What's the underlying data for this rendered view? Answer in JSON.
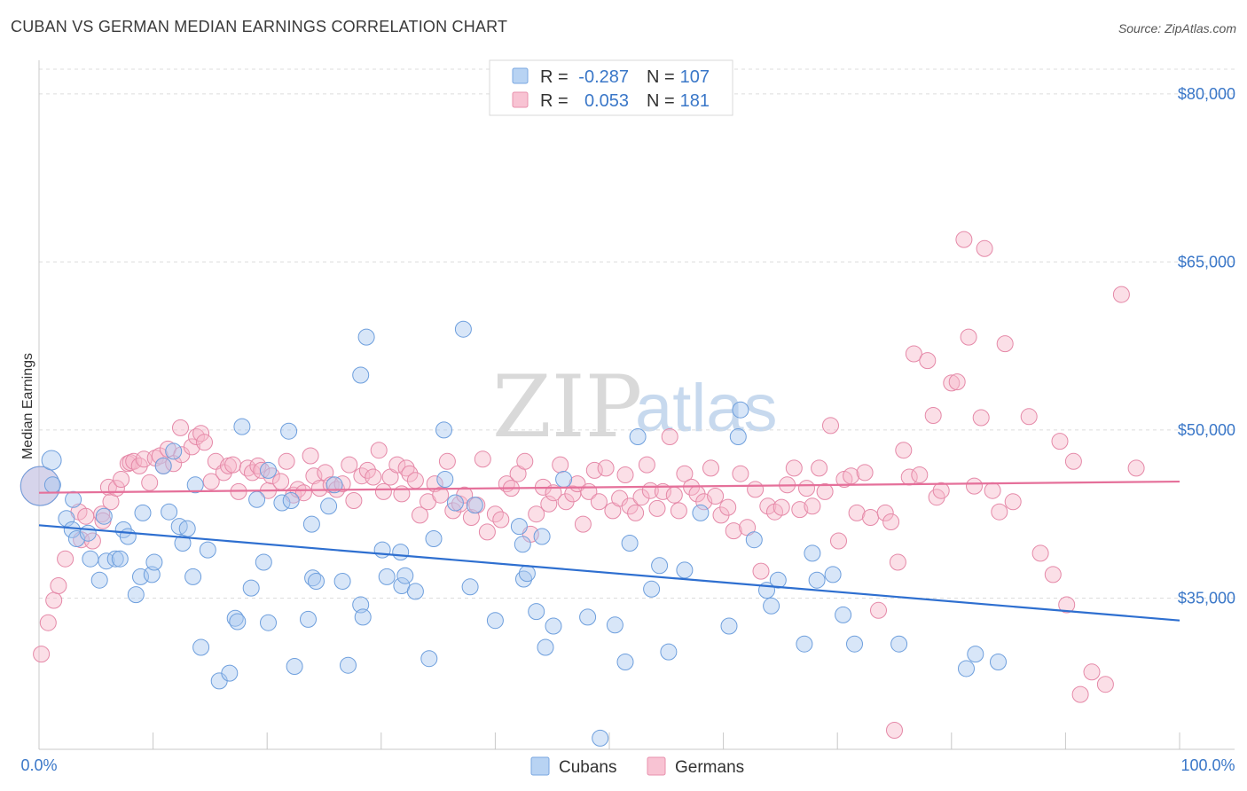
{
  "title": "CUBAN VS GERMAN MEDIAN EARNINGS CORRELATION CHART",
  "source": "Source: ZipAtlas.com",
  "watermark": {
    "zip": "ZIP",
    "atlas": "atlas"
  },
  "legend": {
    "r_label": "R =",
    "n_label": "N =",
    "entries": [
      {
        "name": "Cubans",
        "r": "-0.287",
        "n": "107",
        "fill": "#b8d3f3",
        "stroke": "#7aa7e0"
      },
      {
        "name": "Germans",
        "r": "0.053",
        "n": "181",
        "fill": "#f8c3d3",
        "stroke": "#e890ad"
      }
    ]
  },
  "colors": {
    "cubans_point_fill": "#a9c8f0",
    "cubans_point_stroke": "#6e9fdd",
    "cubans_line": "#2e6fd0",
    "germans_point_fill": "#f6b7ca",
    "germans_point_stroke": "#e589a8",
    "germans_line": "#e5709a",
    "grid": "#dcdcdc",
    "tick_label": "#3a77c8"
  },
  "chart_data": {
    "type": "scatter",
    "title": "CUBAN VS GERMAN MEDIAN EARNINGS CORRELATION CHART",
    "xlabel": "",
    "ylabel": "Median Earnings",
    "x_tick_labels": [
      "0.0%",
      "100.0%"
    ],
    "y_ticks": [
      35000,
      50000,
      65000,
      80000
    ],
    "y_tick_labels": [
      "$35,000",
      "$50,000",
      "$65,000",
      "$80,000"
    ],
    "xlim": [
      0,
      100
    ],
    "ylim": [
      21500,
      83000
    ],
    "grid": "horizontal dashed",
    "legend_placement": "bottom-center",
    "series": [
      {
        "name": "Cubans",
        "r": -0.287,
        "n": 107,
        "trend": {
          "x": [
            0,
            100
          ],
          "y": [
            41500,
            33000
          ]
        },
        "points": [
          [
            0.1,
            45000,
            "l"
          ],
          [
            1.1,
            47300,
            "m"
          ],
          [
            1.2,
            45100
          ],
          [
            2.4,
            42100
          ],
          [
            3.0,
            43800
          ],
          [
            2.9,
            41100
          ],
          [
            3.3,
            40300
          ],
          [
            4.3,
            40800
          ],
          [
            4.5,
            38500
          ],
          [
            5.3,
            36600
          ],
          [
            5.7,
            42300
          ],
          [
            5.9,
            38300
          ],
          [
            6.7,
            38500
          ],
          [
            7.1,
            38500
          ],
          [
            7.4,
            41100
          ],
          [
            7.8,
            40500
          ],
          [
            8.5,
            35300
          ],
          [
            8.9,
            36900
          ],
          [
            9.1,
            42600
          ],
          [
            9.9,
            37100
          ],
          [
            10.1,
            38200
          ],
          [
            10.9,
            46800
          ],
          [
            11.4,
            42700
          ],
          [
            11.8,
            48100
          ],
          [
            12.3,
            41400
          ],
          [
            12.6,
            39900
          ],
          [
            13.0,
            41200
          ],
          [
            13.5,
            36900
          ],
          [
            13.7,
            45100
          ],
          [
            14.2,
            30600
          ],
          [
            14.8,
            39300
          ],
          [
            15.8,
            27600
          ],
          [
            16.7,
            28300
          ],
          [
            17.2,
            33200
          ],
          [
            17.4,
            32900
          ],
          [
            17.8,
            50300
          ],
          [
            18.6,
            35900
          ],
          [
            19.1,
            43800
          ],
          [
            19.7,
            38200
          ],
          [
            20.1,
            32800
          ],
          [
            20.1,
            46400
          ],
          [
            21.3,
            43500
          ],
          [
            22.1,
            43700
          ],
          [
            21.9,
            49900
          ],
          [
            22.4,
            28900
          ],
          [
            23.9,
            41600
          ],
          [
            23.6,
            33100
          ],
          [
            24.0,
            36800
          ],
          [
            24.3,
            36500
          ],
          [
            25.4,
            43200
          ],
          [
            25.9,
            45100
          ],
          [
            26.6,
            36500
          ],
          [
            27.1,
            29000
          ],
          [
            28.2,
            34400
          ],
          [
            28.4,
            33300
          ],
          [
            28.2,
            54900
          ],
          [
            28.7,
            58300
          ],
          [
            30.1,
            39300
          ],
          [
            30.5,
            36900
          ],
          [
            31.7,
            39100
          ],
          [
            31.8,
            36100
          ],
          [
            32.1,
            37000
          ],
          [
            33.0,
            35600
          ],
          [
            34.2,
            29600
          ],
          [
            34.6,
            40300
          ],
          [
            35.6,
            45600
          ],
          [
            35.5,
            50000
          ],
          [
            36.5,
            43500
          ],
          [
            37.2,
            59000
          ],
          [
            37.8,
            36000
          ],
          [
            38.2,
            43300
          ],
          [
            40.0,
            33000
          ],
          [
            42.1,
            41400
          ],
          [
            42.4,
            39800
          ],
          [
            42.5,
            36700
          ],
          [
            42.8,
            37200
          ],
          [
            43.6,
            33800
          ],
          [
            44.1,
            40500
          ],
          [
            44.4,
            30600
          ],
          [
            45.1,
            32500
          ],
          [
            46.0,
            45600
          ],
          [
            48.1,
            33300
          ],
          [
            49.2,
            22500
          ],
          [
            50.5,
            32600
          ],
          [
            51.4,
            29300
          ],
          [
            51.8,
            39900
          ],
          [
            52.5,
            49400
          ],
          [
            53.7,
            35800
          ],
          [
            54.4,
            37900
          ],
          [
            55.2,
            30200
          ],
          [
            56.6,
            37500
          ],
          [
            58.0,
            42600
          ],
          [
            60.5,
            32500
          ],
          [
            61.3,
            49400
          ],
          [
            61.5,
            51800
          ],
          [
            62.7,
            40200
          ],
          [
            63.8,
            35700
          ],
          [
            64.2,
            34300
          ],
          [
            64.8,
            36600
          ],
          [
            67.1,
            30900
          ],
          [
            68.2,
            36600
          ],
          [
            67.8,
            39000
          ],
          [
            69.6,
            37100
          ],
          [
            70.5,
            33500
          ],
          [
            71.5,
            30900
          ],
          [
            75.4,
            30900
          ],
          [
            81.3,
            28700
          ],
          [
            82.1,
            30000
          ],
          [
            84.1,
            29300
          ]
        ]
      },
      {
        "name": "Germans",
        "r": 0.053,
        "n": 181,
        "trend": {
          "x": [
            0,
            100
          ],
          "y": [
            44400,
            45400
          ]
        },
        "points": [
          [
            0.1,
            45000,
            "l"
          ],
          [
            0.2,
            30000
          ],
          [
            0.8,
            32800
          ],
          [
            1.3,
            34800
          ],
          [
            1.7,
            36100
          ],
          [
            2.3,
            38500
          ],
          [
            3.5,
            42700
          ],
          [
            3.7,
            40200
          ],
          [
            4.1,
            42300
          ],
          [
            4.7,
            40100
          ],
          [
            5.5,
            42500
          ],
          [
            5.6,
            41900
          ],
          [
            6.1,
            44900
          ],
          [
            6.3,
            43600
          ],
          [
            6.8,
            44800
          ],
          [
            7.2,
            45600
          ],
          [
            7.8,
            47000
          ],
          [
            8.0,
            47100
          ],
          [
            8.3,
            47200
          ],
          [
            8.8,
            46800
          ],
          [
            9.2,
            47400
          ],
          [
            9.7,
            45300
          ],
          [
            10.2,
            47500
          ],
          [
            10.6,
            47700
          ],
          [
            10.9,
            46800
          ],
          [
            11.3,
            48300
          ],
          [
            11.8,
            47000
          ],
          [
            12.4,
            50200
          ],
          [
            12.5,
            47800
          ],
          [
            13.4,
            48500
          ],
          [
            13.8,
            49400
          ],
          [
            14.2,
            49700
          ],
          [
            14.5,
            48900
          ],
          [
            15.1,
            45400
          ],
          [
            15.5,
            47200
          ],
          [
            16.2,
            46200
          ],
          [
            16.6,
            46800
          ],
          [
            17.0,
            46900
          ],
          [
            17.5,
            44500
          ],
          [
            18.3,
            46600
          ],
          [
            18.7,
            46200
          ],
          [
            19.2,
            46800
          ],
          [
            19.5,
            46400
          ],
          [
            20.1,
            44600
          ],
          [
            20.4,
            45900
          ],
          [
            21.2,
            45400
          ],
          [
            21.7,
            47200
          ],
          [
            22.3,
            44200
          ],
          [
            22.7,
            44700
          ],
          [
            23.2,
            44400
          ],
          [
            23.8,
            47700
          ],
          [
            24.1,
            45900
          ],
          [
            24.6,
            44800
          ],
          [
            25.1,
            46200
          ],
          [
            25.6,
            45100
          ],
          [
            26.1,
            44700
          ],
          [
            26.6,
            45200
          ],
          [
            27.2,
            46900
          ],
          [
            27.6,
            43700
          ],
          [
            28.3,
            45900
          ],
          [
            28.8,
            46400
          ],
          [
            29.3,
            45800
          ],
          [
            29.8,
            48200
          ],
          [
            30.2,
            44500
          ],
          [
            30.8,
            45800
          ],
          [
            31.4,
            46900
          ],
          [
            31.8,
            44300
          ],
          [
            32.2,
            46600
          ],
          [
            32.5,
            46100
          ],
          [
            33.0,
            45500
          ],
          [
            33.4,
            42400
          ],
          [
            34.1,
            43600
          ],
          [
            34.7,
            45200
          ],
          [
            35.2,
            44200
          ],
          [
            35.8,
            47200
          ],
          [
            36.3,
            42800
          ],
          [
            36.9,
            43400
          ],
          [
            37.3,
            44200
          ],
          [
            37.9,
            42200
          ],
          [
            38.4,
            43300
          ],
          [
            38.9,
            47400
          ],
          [
            39.3,
            40900
          ],
          [
            40.0,
            42500
          ],
          [
            40.5,
            42000
          ],
          [
            41.0,
            45200
          ],
          [
            41.4,
            44800
          ],
          [
            42.0,
            46100
          ],
          [
            42.6,
            47200
          ],
          [
            43.1,
            40700
          ],
          [
            43.6,
            42500
          ],
          [
            44.2,
            44900
          ],
          [
            44.7,
            43400
          ],
          [
            45.1,
            44400
          ],
          [
            45.7,
            46900
          ],
          [
            46.2,
            43600
          ],
          [
            46.8,
            44300
          ],
          [
            47.2,
            45200
          ],
          [
            47.7,
            41600
          ],
          [
            48.2,
            44500
          ],
          [
            48.7,
            46400
          ],
          [
            49.1,
            43600
          ],
          [
            49.7,
            46600
          ],
          [
            50.3,
            42800
          ],
          [
            50.9,
            43900
          ],
          [
            51.4,
            46000
          ],
          [
            51.8,
            43200
          ],
          [
            52.3,
            42600
          ],
          [
            52.8,
            44000
          ],
          [
            53.3,
            46900
          ],
          [
            53.6,
            44600
          ],
          [
            54.2,
            43000
          ],
          [
            54.7,
            44500
          ],
          [
            55.3,
            49400
          ],
          [
            55.7,
            44200
          ],
          [
            56.1,
            42800
          ],
          [
            56.6,
            46100
          ],
          [
            57.2,
            44900
          ],
          [
            57.7,
            44300
          ],
          [
            58.3,
            43600
          ],
          [
            58.9,
            46600
          ],
          [
            59.3,
            44100
          ],
          [
            59.8,
            42400
          ],
          [
            60.4,
            43100
          ],
          [
            60.9,
            41000
          ],
          [
            61.5,
            46100
          ],
          [
            62.1,
            41300
          ],
          [
            62.8,
            44700
          ],
          [
            63.3,
            37400
          ],
          [
            63.9,
            43200
          ],
          [
            64.5,
            42700
          ],
          [
            65.1,
            43100
          ],
          [
            65.6,
            45100
          ],
          [
            66.2,
            46600
          ],
          [
            66.7,
            42900
          ],
          [
            67.3,
            44800
          ],
          [
            67.8,
            43200
          ],
          [
            68.4,
            46600
          ],
          [
            68.9,
            44500
          ],
          [
            69.4,
            50400
          ],
          [
            70.1,
            40100
          ],
          [
            70.6,
            45600
          ],
          [
            71.2,
            45900
          ],
          [
            71.7,
            42600
          ],
          [
            72.4,
            46200
          ],
          [
            72.9,
            42200
          ],
          [
            73.6,
            33900
          ],
          [
            74.2,
            42600
          ],
          [
            74.7,
            41800
          ],
          [
            75.3,
            38200
          ],
          [
            75.8,
            48200
          ],
          [
            76.3,
            45800
          ],
          [
            76.7,
            56800
          ],
          [
            77.2,
            46000
          ],
          [
            77.9,
            56200
          ],
          [
            78.4,
            51300
          ],
          [
            78.7,
            44000
          ],
          [
            79.1,
            44600
          ],
          [
            80.0,
            54200
          ],
          [
            80.5,
            54300
          ],
          [
            81.1,
            67000
          ],
          [
            81.5,
            58300
          ],
          [
            82.0,
            45000
          ],
          [
            82.6,
            51100
          ],
          [
            82.9,
            66200
          ],
          [
            83.6,
            44600
          ],
          [
            84.2,
            42700
          ],
          [
            84.7,
            57700
          ],
          [
            85.4,
            43600
          ],
          [
            86.8,
            51200
          ],
          [
            87.8,
            39000
          ],
          [
            88.9,
            37100
          ],
          [
            89.5,
            49000
          ],
          [
            90.1,
            34400
          ],
          [
            90.7,
            47200
          ],
          [
            91.3,
            26400
          ],
          [
            92.3,
            28400
          ],
          [
            93.5,
            27300
          ],
          [
            94.9,
            62100
          ],
          [
            96.2,
            46600
          ],
          [
            75.0,
            23200
          ]
        ]
      }
    ]
  }
}
